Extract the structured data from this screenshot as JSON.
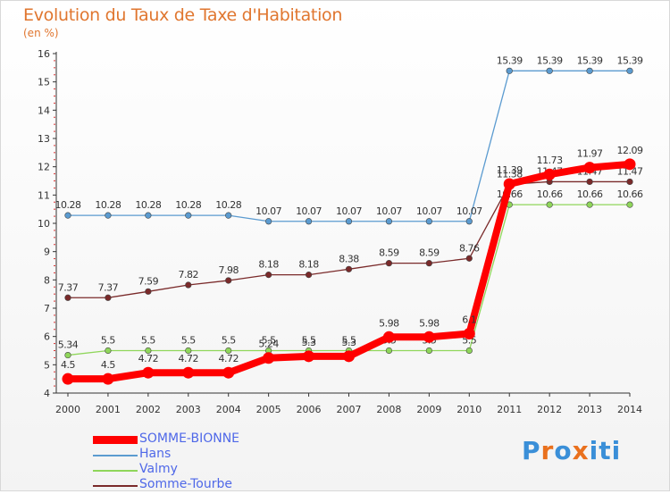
{
  "header": {
    "title": "Evolution du Taux de Taxe d'Habitation",
    "subtitle": "(en %)"
  },
  "logo": {
    "letters": [
      "P",
      "r",
      "o",
      "x",
      "i",
      "t",
      "i"
    ],
    "colors": [
      "#3a8fd8",
      "#e9701d",
      "#3a8fd8",
      "#e9701d",
      "#3a8fd8",
      "#3a8fd8",
      "#3a8fd8"
    ]
  },
  "chart_data": {
    "type": "line",
    "x": [
      "2000",
      "2001",
      "2002",
      "2003",
      "2004",
      "2005",
      "2006",
      "2007",
      "2008",
      "2009",
      "2010",
      "2011",
      "2012",
      "2013",
      "2014"
    ],
    "ylim": [
      4,
      16
    ],
    "yticks": [
      "4",
      "5",
      "6",
      "7",
      "8",
      "9",
      "10",
      "11",
      "12",
      "13",
      "14",
      "15",
      "16"
    ],
    "grid": false,
    "legend_position": "bottom-left",
    "series": [
      {
        "name": "Hans",
        "color": "#5b9bd0",
        "values": [
          10.28,
          10.28,
          10.28,
          10.28,
          10.28,
          10.07,
          10.07,
          10.07,
          10.07,
          10.07,
          10.07,
          15.39,
          15.39,
          15.39,
          15.39
        ],
        "labels": [
          "10.28",
          "10.28",
          "10.28",
          "10.28",
          "10.28",
          "10.07",
          "10.07",
          "10.07",
          "10.07",
          "10.07",
          "10.07",
          "15.39",
          "15.39",
          "15.39",
          "15.39"
        ]
      },
      {
        "name": "Somme-Tourbe",
        "color": "#7a2a2a",
        "values": [
          7.37,
          7.37,
          7.59,
          7.82,
          7.98,
          8.18,
          8.18,
          8.38,
          8.59,
          8.59,
          8.76,
          11.38,
          11.47,
          11.47,
          11.47
        ],
        "labels": [
          "7.37",
          "7.37",
          "7.59",
          "7.82",
          "7.98",
          "8.18",
          "8.18",
          "8.38",
          "8.59",
          "8.59",
          "8.76",
          "11.38",
          "11.47",
          "11.47",
          "11.47"
        ]
      },
      {
        "name": "Valmy",
        "color": "#8fd65a",
        "values": [
          5.34,
          5.5,
          5.5,
          5.5,
          5.5,
          5.5,
          5.5,
          5.5,
          5.5,
          5.5,
          5.5,
          10.66,
          10.66,
          10.66,
          10.66
        ],
        "labels": [
          "5.34",
          "5.5",
          "5.5",
          "5.5",
          "5.5",
          "5.5",
          "5.5",
          "5.5",
          "5.5",
          "5.5",
          "5.5",
          "10.66",
          "10.66",
          "10.66",
          "10.66"
        ]
      },
      {
        "name": "SOMME-BIONNE",
        "color": "#ff0000",
        "values": [
          4.5,
          4.5,
          4.72,
          4.72,
          4.72,
          5.24,
          5.3,
          5.3,
          5.98,
          5.98,
          6.1,
          11.39,
          11.73,
          11.97,
          12.09
        ],
        "labels": [
          "4.5",
          "4.5",
          "4.72",
          "4.72",
          "4.72",
          "5.24",
          "5.3",
          "5.3",
          "5.98",
          "5.98",
          "6.1",
          "11.39",
          "11.73",
          "11.97",
          "12.09"
        ]
      }
    ],
    "legend": [
      "SOMME-BIONNE",
      "Hans",
      "Valmy",
      "Somme-Tourbe"
    ]
  }
}
